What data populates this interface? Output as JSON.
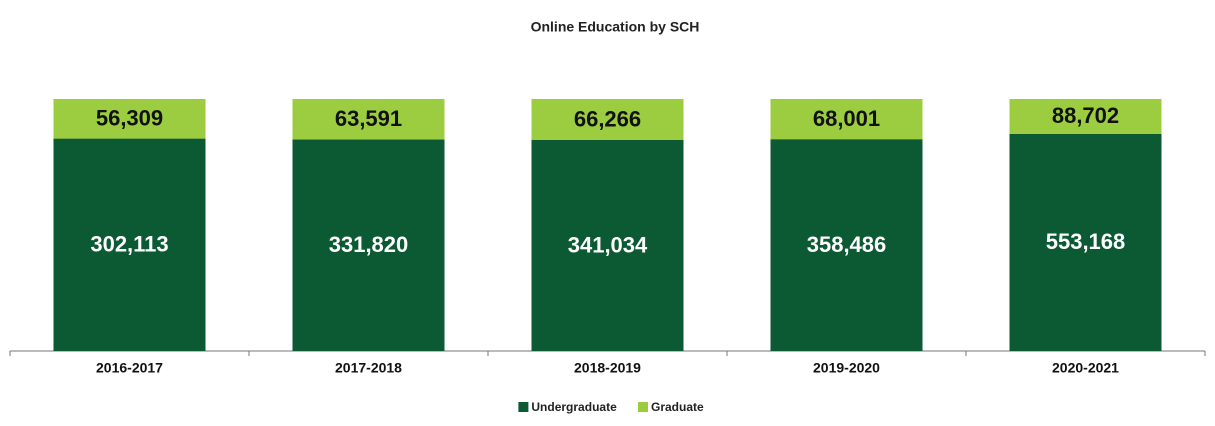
{
  "chart_data": {
    "type": "bar",
    "stack": "percent",
    "title": "Online Education by SCH",
    "categories": [
      "2016-2017",
      "2017-2018",
      "2018-2019",
      "2019-2020",
      "2020-2021"
    ],
    "series": [
      {
        "name": "Undergraduate",
        "color": "#0b5a34",
        "values": [
          302113,
          331820,
          341034,
          358486,
          553168
        ],
        "value_labels": [
          "302,113",
          "331,820",
          "341,034",
          "358,486",
          "553,168"
        ]
      },
      {
        "name": "Graduate",
        "color": "#9ccc3f",
        "values": [
          56309,
          63591,
          66266,
          68001,
          88702
        ],
        "value_labels": [
          "56,309",
          "63,591",
          "66,266",
          "68,001",
          "88,702"
        ]
      }
    ],
    "legend": "bottom"
  }
}
